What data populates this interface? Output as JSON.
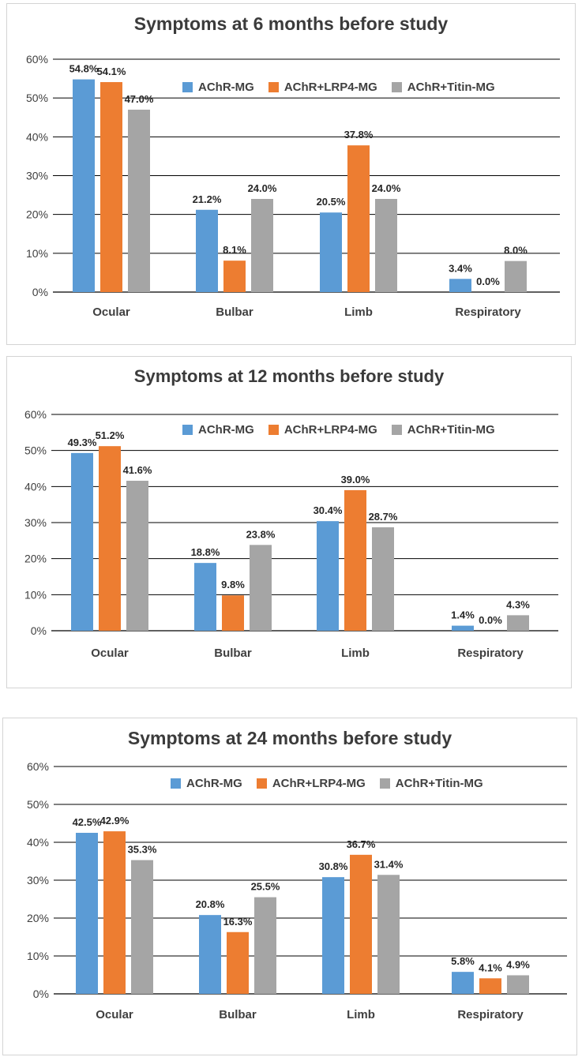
{
  "colors": {
    "achr": "#5B9BD5",
    "lrp4": "#ED7D31",
    "titin": "#A5A5A5"
  },
  "chart_data": [
    {
      "type": "bar",
      "title": "Symptoms at 6 months before study",
      "categories": [
        "Ocular",
        "Bulbar",
        "Limb",
        "Respiratory"
      ],
      "ylim": [
        0,
        60
      ],
      "yticks": [
        "0%",
        "10%",
        "20%",
        "30%",
        "40%",
        "50%",
        "60%"
      ],
      "grid": true,
      "legend_position": "top-right",
      "series": [
        {
          "name": "AChR-MG",
          "values": [
            54.8,
            21.2,
            20.5,
            3.4
          ],
          "labels": [
            "54.8%",
            "21.2%",
            "20.5%",
            "3.4%"
          ]
        },
        {
          "name": "AChR+LRP4-MG",
          "values": [
            54.1,
            8.1,
            37.8,
            0.0
          ],
          "labels": [
            "54.1%",
            "8.1%",
            "37.8%",
            "0.0%"
          ]
        },
        {
          "name": "AChR+Titin-MG",
          "values": [
            47.0,
            24.0,
            24.0,
            8.0
          ],
          "labels": [
            "47.0%",
            "24.0%",
            "24.0%",
            "8.0%"
          ]
        }
      ]
    },
    {
      "type": "bar",
      "title": "Symptoms at 12 months before study",
      "categories": [
        "Ocular",
        "Bulbar",
        "Limb",
        "Respiratory"
      ],
      "ylim": [
        0,
        60
      ],
      "yticks": [
        "0%",
        "10%",
        "20%",
        "30%",
        "40%",
        "50%",
        "60%"
      ],
      "grid": true,
      "legend_position": "top-right",
      "series": [
        {
          "name": "AChR-MG",
          "values": [
            49.3,
            18.8,
            30.4,
            1.4
          ],
          "labels": [
            "49.3%",
            "18.8%",
            "30.4%",
            "1.4%"
          ]
        },
        {
          "name": "AChR+LRP4-MG",
          "values": [
            51.2,
            9.8,
            39.0,
            0.0
          ],
          "labels": [
            "51.2%",
            "9.8%",
            "39.0%",
            "0.0%"
          ]
        },
        {
          "name": "AChR+Titin-MG",
          "values": [
            41.6,
            23.8,
            28.7,
            4.3
          ],
          "labels": [
            "41.6%",
            "23.8%",
            "28.7%",
            "4.3%"
          ]
        }
      ]
    },
    {
      "type": "bar",
      "title": "Symptoms at 24 months before study",
      "categories": [
        "Ocular",
        "Bulbar",
        "Limb",
        "Respiratory"
      ],
      "ylim": [
        0,
        60
      ],
      "yticks": [
        "0%",
        "10%",
        "20%",
        "30%",
        "40%",
        "50%",
        "60%"
      ],
      "grid": true,
      "legend_position": "top-right",
      "series": [
        {
          "name": "AChR-MG",
          "values": [
            42.5,
            20.8,
            30.8,
            5.8
          ],
          "labels": [
            "42.5%",
            "20.8%",
            "30.8%",
            "5.8%"
          ]
        },
        {
          "name": "AChR+LRP4-MG",
          "values": [
            42.9,
            16.3,
            36.7,
            4.1
          ],
          "labels": [
            "42.9%",
            "16.3%",
            "36.7%",
            "4.1%"
          ]
        },
        {
          "name": "AChR+Titin-MG",
          "values": [
            35.3,
            25.5,
            31.4,
            4.9
          ],
          "labels": [
            "35.3%",
            "25.5%",
            "31.4%",
            "4.9%"
          ]
        }
      ]
    }
  ]
}
